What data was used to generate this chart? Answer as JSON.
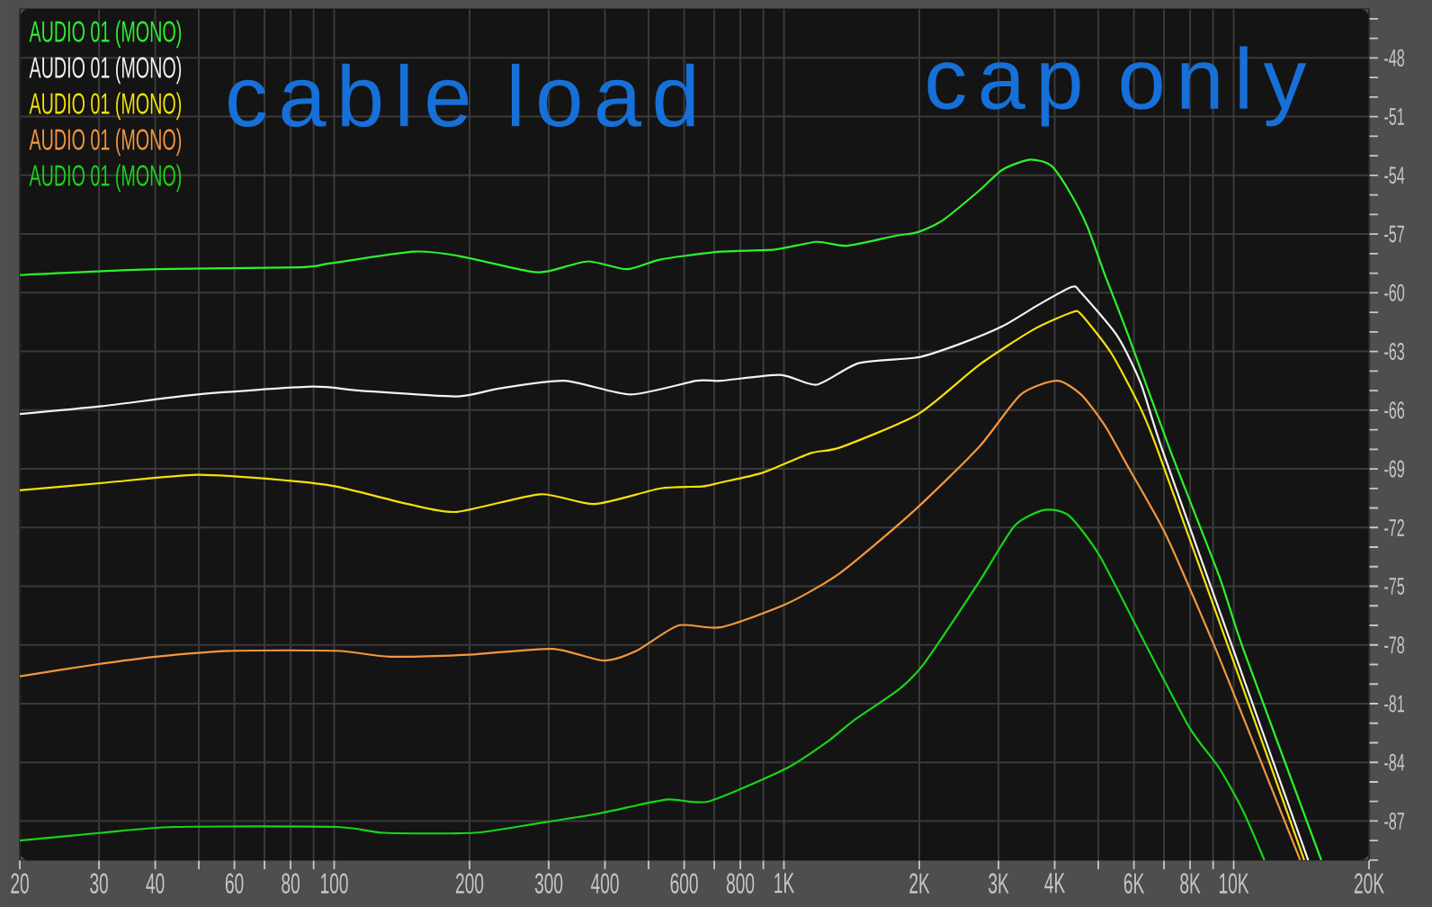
{
  "chart_data": {
    "type": "line",
    "log": "x",
    "grid": true,
    "legend": "top left",
    "line_style": "solid",
    "annotations": [
      "cable load",
      "cap only"
    ],
    "xlim": [
      20,
      20000
    ],
    "ylim": [
      -89,
      -45.5
    ],
    "xticks": [
      20,
      30,
      40,
      {
        "value": 50,
        "label": null
      },
      60,
      {
        "value": 70,
        "label": null
      },
      80,
      {
        "value": 90,
        "label": null
      },
      100,
      200,
      300,
      400,
      {
        "value": 500,
        "label": null
      },
      600,
      {
        "value": 700,
        "label": null
      },
      800,
      {
        "value": 900,
        "label": null
      },
      {
        "value": 1000,
        "label": "1K"
      },
      {
        "value": 2000,
        "label": "2K"
      },
      {
        "value": 3000,
        "label": "3K"
      },
      {
        "value": 4000,
        "label": "4K"
      },
      {
        "value": 5000,
        "label": null
      },
      {
        "value": 6000,
        "label": "6K"
      },
      {
        "value": 7000,
        "label": null
      },
      {
        "value": 8000,
        "label": "8K"
      },
      {
        "value": 9000,
        "label": null
      },
      {
        "value": 10000,
        "label": "10K"
      },
      {
        "value": 20000,
        "label": "20K"
      }
    ],
    "yticks": [
      {
        "value": -89,
        "label": null
      },
      {
        "value": -88,
        "label": null
      },
      -87,
      {
        "value": -86,
        "label": null
      },
      {
        "value": -85,
        "label": null
      },
      -84,
      {
        "value": -83,
        "label": null
      },
      {
        "value": -82,
        "label": null
      },
      -81,
      {
        "value": -80,
        "label": null
      },
      {
        "value": -79,
        "label": null
      },
      -78,
      {
        "value": -77,
        "label": null
      },
      {
        "value": -76,
        "label": null
      },
      -75,
      {
        "value": -74,
        "label": null
      },
      {
        "value": -73,
        "label": null
      },
      -72,
      {
        "value": -71,
        "label": null
      },
      {
        "value": -70,
        "label": null
      },
      -69,
      {
        "value": -68,
        "label": null
      },
      {
        "value": -67,
        "label": null
      },
      -66,
      {
        "value": -65,
        "label": null
      },
      {
        "value": -64,
        "label": null
      },
      -63,
      {
        "value": -62,
        "label": null
      },
      {
        "value": -61,
        "label": null
      },
      -60,
      {
        "value": -59,
        "label": null
      },
      {
        "value": -58,
        "label": null
      },
      -57,
      {
        "value": -56,
        "label": null
      },
      {
        "value": -55,
        "label": null
      },
      -54,
      {
        "value": -53,
        "label": null
      },
      {
        "value": -52,
        "label": null
      },
      -51,
      {
        "value": -50,
        "label": null
      },
      {
        "value": -49,
        "label": null
      },
      -48,
      {
        "value": -47,
        "label": null
      },
      {
        "value": -46,
        "label": null
      }
    ],
    "series": [
      {
        "name": "AUDIO 01 (MONO)",
        "color": "#2cf22c",
        "x": [
          20,
          40,
          84,
          98,
          150,
          187,
          270,
          300,
          367,
          448,
          532,
          723,
          953,
          1182,
          1379,
          1763,
          1989,
          2255,
          2712,
          3069,
          3525,
          3925,
          4305,
          4723,
          5174,
          5856,
          7213,
          9290,
          10500,
          15660
        ],
        "values": [
          -59.1,
          -58.8,
          -58.7,
          -58.5,
          -57.9,
          -58.1,
          -58.9,
          -58.9,
          -58.4,
          -58.8,
          -58.3,
          -57.9,
          -57.8,
          -57.4,
          -57.6,
          -57.1,
          -56.9,
          -56.3,
          -54.8,
          -53.7,
          -53.2,
          -53.5,
          -54.8,
          -56.6,
          -59.1,
          -62.3,
          -68.0,
          -74.5,
          -78.2,
          -89.0
        ]
      },
      {
        "name": "AUDIO 01 (MONO)",
        "color": "#f2f2f2",
        "x": [
          20,
          30.4,
          49.7,
          89,
          114,
          187,
          232,
          325,
          456,
          639,
          723,
          982,
          1182,
          1466,
          1989,
          2473,
          3069,
          3692,
          4372,
          4577,
          5507,
          6208,
          6932,
          10075,
          14640
        ],
        "values": [
          -66.2,
          -65.8,
          -65.2,
          -64.8,
          -65.0,
          -65.3,
          -64.9,
          -64.5,
          -65.2,
          -64.5,
          -64.5,
          -64.2,
          -64.7,
          -63.6,
          -63.3,
          -62.6,
          -61.7,
          -60.6,
          -59.7,
          -60.0,
          -62.2,
          -64.6,
          -68.0,
          -78.5,
          -89.0
        ]
      },
      {
        "name": "AUDIO 01 (MONO)",
        "color": "#f5e10a",
        "x": [
          20,
          31.3,
          49.7,
          78.9,
          101,
          146,
          187,
          287,
          379,
          532,
          659,
          723,
          897,
          1146,
          1337,
          1989,
          2712,
          3578,
          4372,
          4577,
          5348,
          6208,
          6790,
          9870,
          14350
        ],
        "values": [
          -70.1,
          -69.7,
          -69.3,
          -69.6,
          -69.9,
          -70.8,
          -71.2,
          -70.3,
          -70.8,
          -70.0,
          -69.9,
          -69.7,
          -69.2,
          -68.2,
          -67.9,
          -66.2,
          -63.7,
          -61.9,
          -61.0,
          -61.1,
          -63.1,
          -65.9,
          -68.1,
          -78.5,
          -89.0
        ]
      },
      {
        "name": "AUDIO 01 (MONO)",
        "color": "#f5963c",
        "x": [
          20,
          29.5,
          40.1,
          59.8,
          101,
          133,
          199,
          306,
          397,
          470,
          583,
          723,
          1014,
          1337,
          1934,
          2712,
          3364,
          4047,
          4577,
          5174,
          5856,
          7042,
          9003,
          10250,
          14060
        ],
        "values": [
          -79.6,
          -79.0,
          -78.6,
          -78.3,
          -78.3,
          -78.6,
          -78.5,
          -78.2,
          -78.8,
          -78.3,
          -77.0,
          -77.1,
          -75.9,
          -74.3,
          -71.2,
          -67.9,
          -65.2,
          -64.5,
          -65.2,
          -66.8,
          -69.0,
          -72.3,
          -77.9,
          -81.1,
          -89.0
        ]
      },
      {
        "name": "AUDIO 01 (MONO)",
        "color": "#18d418",
        "x": [
          20,
          30.4,
          44,
          101,
          129,
          205,
          287,
          391,
          548,
          680,
          1014,
          1257,
          1422,
          1818,
          2057,
          2712,
          3262,
          3805,
          4305,
          5021,
          6218,
          7962,
          9290,
          10500,
          11700
        ],
        "values": [
          -88.0,
          -87.6,
          -87.3,
          -87.3,
          -87.6,
          -87.6,
          -87.1,
          -86.6,
          -85.9,
          -86.0,
          -84.3,
          -82.9,
          -81.9,
          -80.2,
          -78.9,
          -74.8,
          -71.9,
          -71.1,
          -71.4,
          -73.4,
          -77.5,
          -82.2,
          -84.3,
          -86.5,
          -89.0
        ]
      }
    ]
  }
}
